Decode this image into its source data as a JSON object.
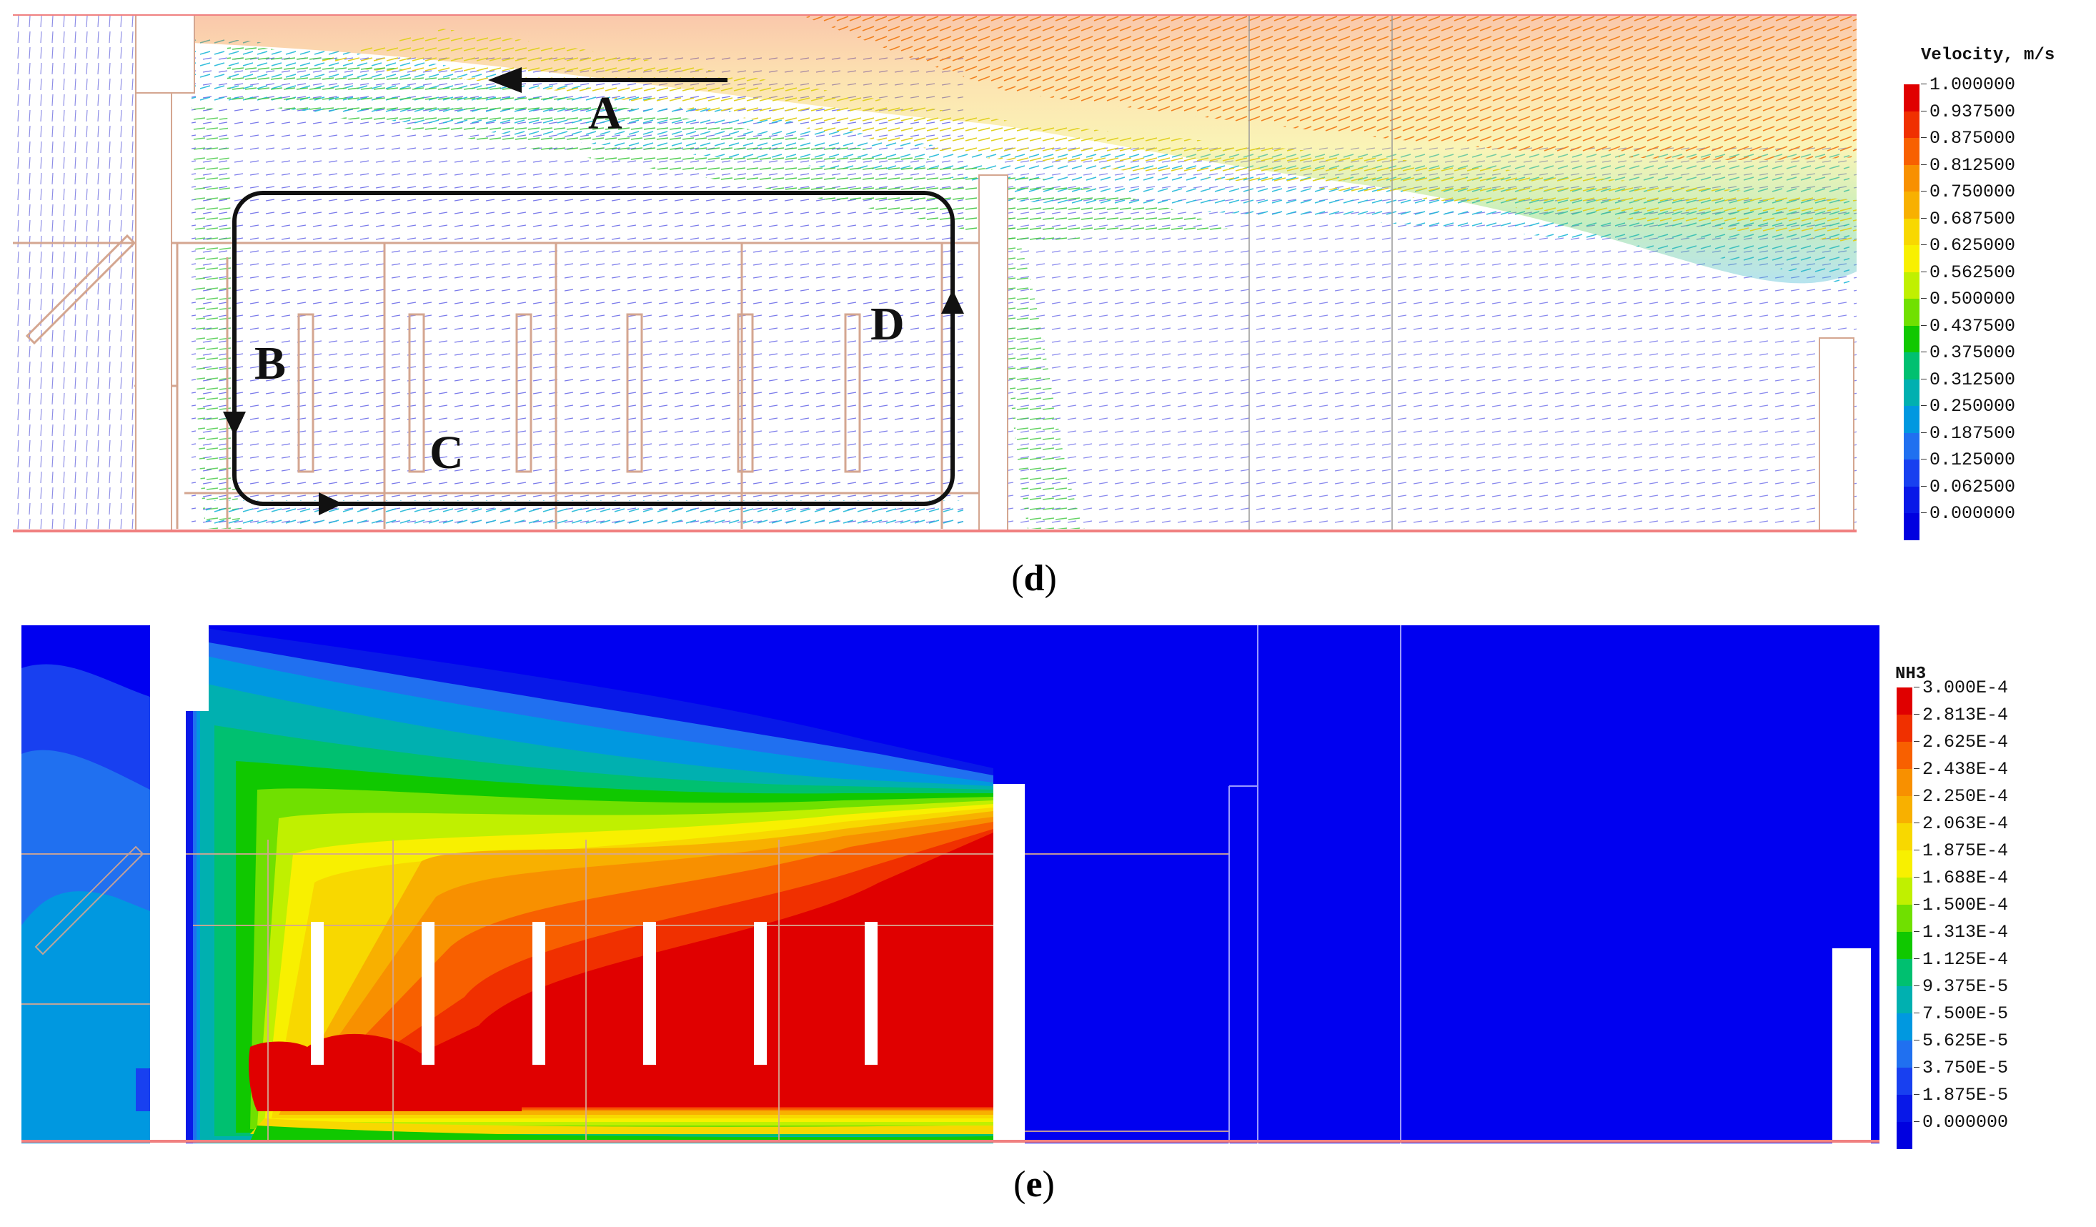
{
  "panel_d": {
    "caption": "d",
    "legend_title": "Velocity, m/s",
    "legend_values": [
      "1.000000",
      "0.937500",
      "0.875000",
      "0.812500",
      "0.750000",
      "0.687500",
      "0.625000",
      "0.562500",
      "0.500000",
      "0.437500",
      "0.375000",
      "0.312500",
      "0.250000",
      "0.187500",
      "0.125000",
      "0.062500",
      "0.000000"
    ],
    "labels": {
      "a": "A",
      "b": "B",
      "c": "C",
      "d": "D"
    }
  },
  "panel_e": {
    "caption": "e",
    "legend_title": "NH3",
    "legend_values": [
      "3.000E-4",
      "2.813E-4",
      "2.625E-4",
      "2.438E-4",
      "2.250E-4",
      "2.063E-4",
      "1.875E-4",
      "1.688E-4",
      "1.500E-4",
      "1.313E-4",
      "1.125E-4",
      "9.375E-5",
      "7.500E-5",
      "5.625E-5",
      "3.750E-5",
      "1.875E-5",
      "0.000000"
    ]
  },
  "colors": {
    "scale": [
      "#e00000",
      "#f03000",
      "#f86000",
      "#f89000",
      "#f8b000",
      "#f8d800",
      "#f8f000",
      "#c0f000",
      "#70e000",
      "#10c800",
      "#00c070",
      "#00b0b0",
      "#0098e0",
      "#2070f0",
      "#1840f0",
      "#0818e8",
      "#0000e0"
    ],
    "background_blue": "#0000f0",
    "wall": "#ffffff",
    "outline": "#d4a690",
    "floor_line": "#f08080"
  }
}
